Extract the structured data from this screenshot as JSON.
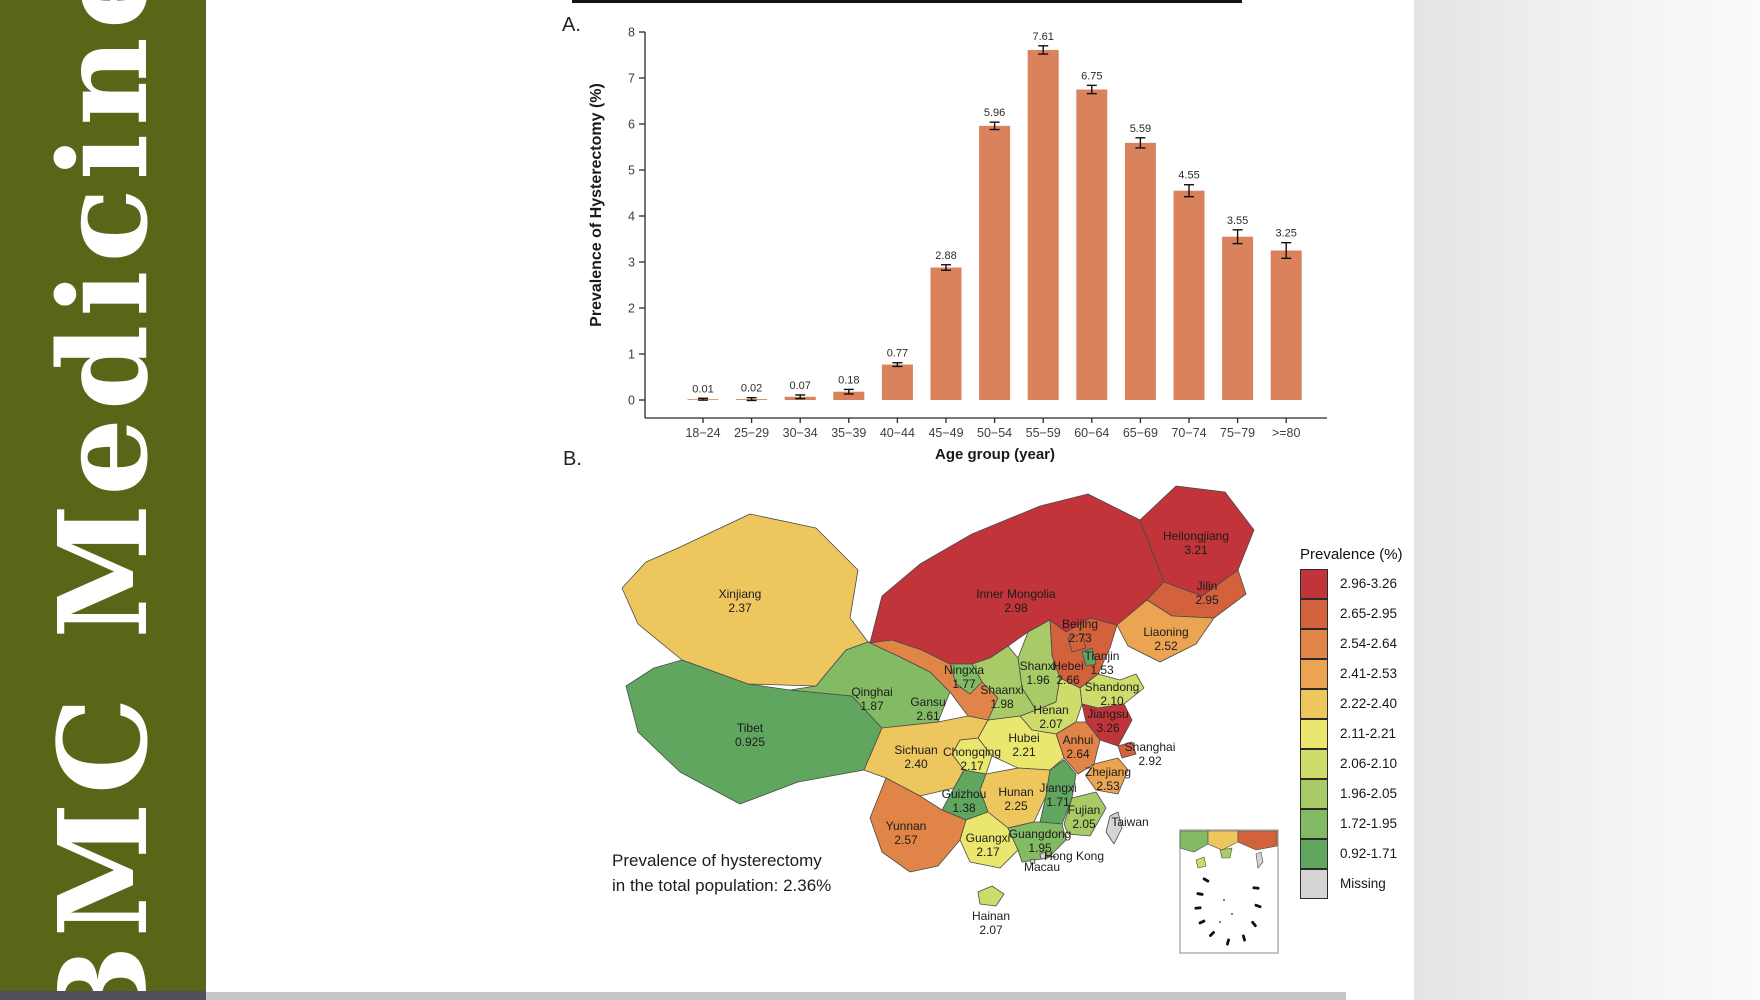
{
  "banner": {
    "journal": "BMC Medicine",
    "bg_color": "#5a6617"
  },
  "panels": {
    "a": "A.",
    "b": "B."
  },
  "chart_data": {
    "type": "bar",
    "categories": [
      "18−24",
      "25−29",
      "30−34",
      "35−39",
      "40−44",
      "45−49",
      "50−54",
      "55−59",
      "60−64",
      "65−69",
      "70−74",
      "75−79",
      ">=80"
    ],
    "values": [
      0.01,
      0.02,
      0.07,
      0.18,
      0.77,
      2.88,
      5.96,
      7.61,
      6.75,
      5.59,
      4.55,
      3.55,
      3.25
    ],
    "errors": [
      0.02,
      0.03,
      0.04,
      0.05,
      0.04,
      0.06,
      0.08,
      0.09,
      0.09,
      0.11,
      0.13,
      0.15,
      0.17
    ],
    "value_labels": [
      "0.01",
      "0.02",
      "0.07",
      "0.18",
      "0.77",
      "2.88",
      "5.96",
      "7.61",
      "6.75",
      "5.59",
      "4.55",
      "3.55",
      "3.25"
    ],
    "ylabel": "Prevalence of Hysterectomy (%)",
    "xlabel": "Age group (year)",
    "ylim": [
      0,
      8
    ],
    "yticks": [
      0,
      1,
      2,
      3,
      4,
      5,
      6,
      7,
      8
    ],
    "bar_color": "#d9825b",
    "error_bar_color": "#111111",
    "grid": false,
    "legend_position": "none"
  },
  "map": {
    "type": "choropleth",
    "annotation_line1": "Prevalence of hysterectomy",
    "annotation_line2": "in the total population: 2.36%",
    "legend": {
      "title": "Prevalence (%)",
      "items": [
        {
          "label": "2.96-3.26",
          "color": "#c0343a"
        },
        {
          "label": "2.65-2.95",
          "color": "#d2613c"
        },
        {
          "label": "2.54-2.64",
          "color": "#e08448"
        },
        {
          "label": "2.41-2.53",
          "color": "#eaa452"
        },
        {
          "label": "2.22-2.40",
          "color": "#eec65e"
        },
        {
          "label": "2.11-2.21",
          "color": "#ebe76e"
        },
        {
          "label": "2.06-2.10",
          "color": "#cedc6c"
        },
        {
          "label": "1.96-2.05",
          "color": "#a8cb68"
        },
        {
          "label": "1.72-1.95",
          "color": "#83ba64"
        },
        {
          "label": "0.92-1.71",
          "color": "#60a65f"
        },
        {
          "label": "Missing",
          "color": "#d5d5d5"
        }
      ]
    },
    "provinces": [
      {
        "id": "xj",
        "name": "Xinjiang",
        "value": "2.37",
        "color": "#eec65e"
      },
      {
        "id": "xz",
        "name": "Tibet",
        "value": "0.925",
        "color": "#60a65f"
      },
      {
        "id": "qh",
        "name": "Qinghai",
        "value": "1.87",
        "color": "#83ba64"
      },
      {
        "id": "gs",
        "name": "Gansu",
        "value": "2.61",
        "color": "#e08448"
      },
      {
        "id": "nm",
        "name": "Inner Mongolia",
        "value": "2.98",
        "color": "#c0343a"
      },
      {
        "id": "hl",
        "name": "Heilongjiang",
        "value": "3.21",
        "color": "#c0343a"
      },
      {
        "id": "jl",
        "name": "Jilin",
        "value": "2.95",
        "color": "#d2613c"
      },
      {
        "id": "ln",
        "name": "Liaoning",
        "value": "2.52",
        "color": "#eaa452"
      },
      {
        "id": "he",
        "name": "Hebei",
        "value": "2.66",
        "color": "#d2613c"
      },
      {
        "id": "sx",
        "name": "Shanxi",
        "value": "1.96",
        "color": "#a8cb68"
      },
      {
        "id": "sd",
        "name": "Shandong",
        "value": "2.10",
        "color": "#cedc6c"
      },
      {
        "id": "ha",
        "name": "Henan",
        "value": "2.07",
        "color": "#cedc6c"
      },
      {
        "id": "js",
        "name": "Jiangsu",
        "value": "3.26",
        "color": "#c0343a"
      },
      {
        "id": "ah",
        "name": "Anhui",
        "value": "2.64",
        "color": "#e08448"
      },
      {
        "id": "sh",
        "name": "Shanghai",
        "value": "2.92",
        "color": "#d2613c"
      },
      {
        "id": "zj",
        "name": "Zhejiang",
        "value": "2.53",
        "color": "#eaa452"
      },
      {
        "id": "hb",
        "name": "Hubei",
        "value": "2.21",
        "color": "#ebe76e"
      },
      {
        "id": "cq",
        "name": "Chongqing",
        "value": "2.17",
        "color": "#ebe76e"
      },
      {
        "id": "sc",
        "name": "Sichuan",
        "value": "2.40",
        "color": "#eec65e"
      },
      {
        "id": "sn",
        "name": "Shaanxi",
        "value": "1.98",
        "color": "#a8cb68"
      },
      {
        "id": "nx",
        "name": "Ningxia",
        "value": "1.77",
        "color": "#83ba64"
      },
      {
        "id": "hn",
        "name": "Hunan",
        "value": "2.25",
        "color": "#eec65e"
      },
      {
        "id": "jx",
        "name": "Jiangxi",
        "value": "1.71",
        "color": "#60a65f"
      },
      {
        "id": "gz",
        "name": "Guizhou",
        "value": "1.38",
        "color": "#60a65f"
      },
      {
        "id": "yn",
        "name": "Yunnan",
        "value": "2.57",
        "color": "#e08448"
      },
      {
        "id": "gx",
        "name": "Guangxi",
        "value": "2.17",
        "color": "#ebe76e"
      },
      {
        "id": "gd",
        "name": "Guangdong",
        "value": "1.95",
        "color": "#83ba64"
      },
      {
        "id": "fj",
        "name": "Fujian",
        "value": "2.05",
        "color": "#a8cb68"
      },
      {
        "id": "hi",
        "name": "Hainan",
        "value": "2.07",
        "color": "#cedc6c"
      },
      {
        "id": "tw",
        "name": "Taiwan",
        "value": "",
        "color": "#d5d5d5"
      },
      {
        "id": "bj",
        "name": "Beijing",
        "value": "2.73",
        "color": "#d2613c"
      },
      {
        "id": "tj",
        "name": "Tianjin",
        "value": "1.53",
        "color": "#60a65f"
      },
      {
        "id": "hk",
        "name": "Hong Kong",
        "value": "",
        "color": "#d5d5d5"
      },
      {
        "id": "mo",
        "name": "Macau",
        "value": "",
        "color": "#d5d5d5"
      }
    ]
  }
}
